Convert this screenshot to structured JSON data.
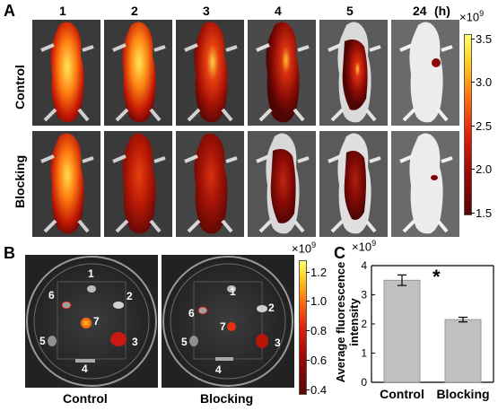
{
  "panelA": {
    "letter": "A",
    "timepoints": [
      "1",
      "2",
      "3",
      "4",
      "5",
      "24"
    ],
    "unit": "(h)",
    "rows": [
      "Control",
      "Blocking"
    ],
    "colorbar": {
      "exponent": "×10",
      "power": "9",
      "ticks": [
        "3.5",
        "3.0",
        "2.5",
        "2.0",
        "1.5"
      ]
    }
  },
  "panelB": {
    "letter": "B",
    "dishes": [
      "Control",
      "Blocking"
    ],
    "organ_labels": [
      "1",
      "2",
      "3",
      "4",
      "5",
      "6",
      "7"
    ],
    "colorbar": {
      "exponent": "×10",
      "power": "9",
      "ticks": [
        "1.2",
        "1.0",
        "0.8",
        "0.6",
        "0.4"
      ]
    }
  },
  "panelC": {
    "letter": "C",
    "exponent": "×10",
    "power": "9",
    "ylabel": "Average fluorescence intensity",
    "significance": "*",
    "chart_data": {
      "type": "bar",
      "categories": [
        "Control",
        "Blocking"
      ],
      "values": [
        3.5,
        2.15
      ],
      "errors": [
        0.18,
        0.08
      ],
      "ylim": [
        0,
        4
      ],
      "yticks": [
        "0",
        "1",
        "2",
        "3",
        "4"
      ],
      "bar_color": "#c0c0c0"
    }
  }
}
